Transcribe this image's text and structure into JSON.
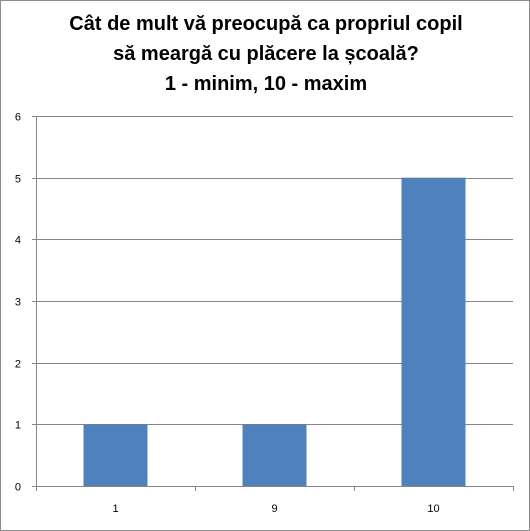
{
  "chart_data": {
    "type": "bar",
    "title_lines": [
      "Cât de mult vă preocupă ca propriul copil",
      "să meargă cu plăcere la școală?",
      "1 - minim, 10 - maxim"
    ],
    "categories": [
      "1",
      "9",
      "10"
    ],
    "values": [
      1,
      1,
      5
    ],
    "ylim": [
      0,
      6
    ],
    "yticks": [
      "0",
      "1",
      "2",
      "3",
      "4",
      "5",
      "6"
    ],
    "grid": true,
    "legend": "none",
    "xlabel": "",
    "ylabel": "",
    "bar_color": "#4f81bd",
    "grid_color": "#868686"
  }
}
